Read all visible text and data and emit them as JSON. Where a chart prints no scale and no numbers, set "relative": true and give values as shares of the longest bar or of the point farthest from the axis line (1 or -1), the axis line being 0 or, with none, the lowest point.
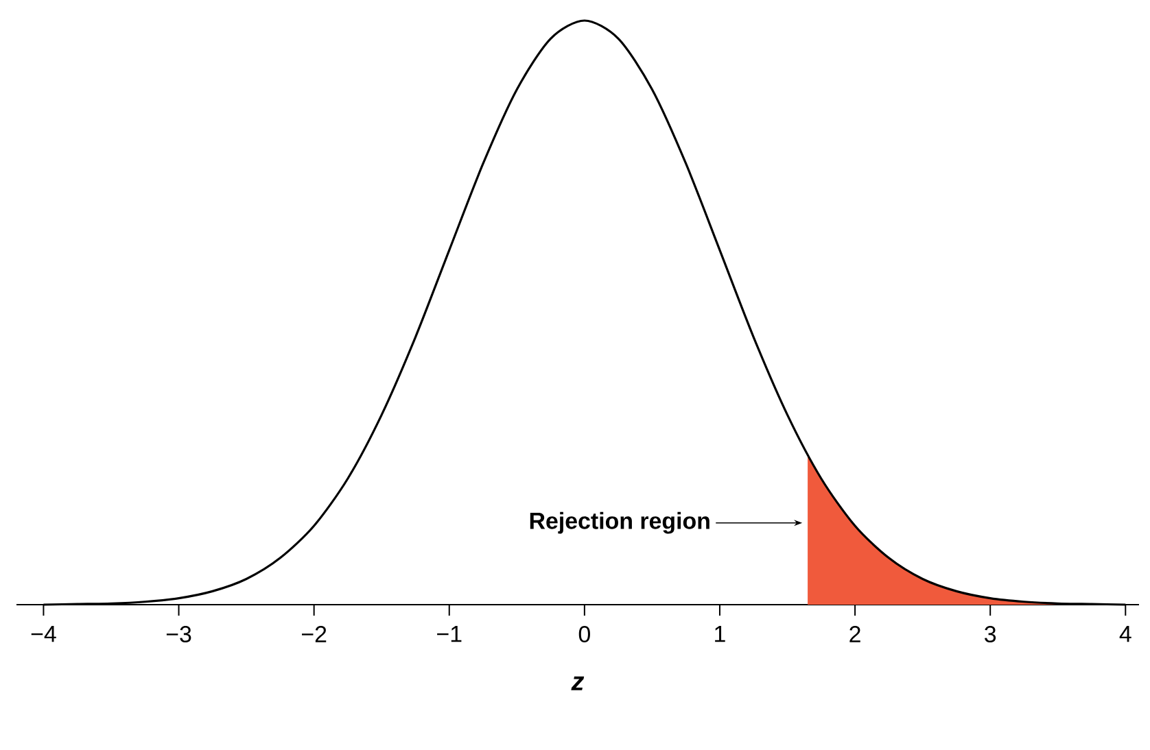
{
  "chart_data": {
    "type": "line",
    "relative": true,
    "xlabel": "z",
    "xlim": [
      -4.2,
      4.1
    ],
    "xticks": [
      {
        "value": -4,
        "label": "−4"
      },
      {
        "value": -3,
        "label": "−3"
      },
      {
        "value": -2,
        "label": "−2"
      },
      {
        "value": -1,
        "label": "−1"
      },
      0,
      1,
      2,
      3,
      4
    ],
    "grid": false,
    "series": [
      {
        "type": "line",
        "color": "#000000",
        "x": [
          -4,
          -3.75,
          -3.5,
          -3.25,
          -3,
          -2.75,
          -2.5,
          -2.25,
          -2,
          -1.75,
          -1.5,
          -1.25,
          -1,
          -0.75,
          -0.5,
          -0.25,
          0,
          0.25,
          0.5,
          0.75,
          1,
          1.25,
          1.5,
          1.75,
          2,
          2.25,
          2.5,
          2.75,
          3,
          3.25,
          3.5,
          3.75,
          4
        ],
        "values": [
          0,
          0.001,
          0.002,
          0.005,
          0.011,
          0.023,
          0.044,
          0.08,
          0.135,
          0.216,
          0.325,
          0.458,
          0.607,
          0.755,
          0.882,
          0.969,
          1,
          0.969,
          0.882,
          0.755,
          0.607,
          0.458,
          0.325,
          0.216,
          0.135,
          0.08,
          0.044,
          0.023,
          0.011,
          0.005,
          0.002,
          0.001,
          0
        ]
      },
      {
        "type": "area",
        "color": "#f05a3c",
        "x": [
          1.65,
          1.75,
          2,
          2.25,
          2.5,
          2.75,
          3,
          3.25,
          3.5,
          3.75,
          4
        ],
        "values": [
          0.256,
          0.216,
          0.135,
          0.08,
          0.044,
          0.023,
          0.011,
          0.005,
          0.002,
          0.001,
          0
        ]
      }
    ],
    "annotations": [
      "Rejection region"
    ]
  }
}
